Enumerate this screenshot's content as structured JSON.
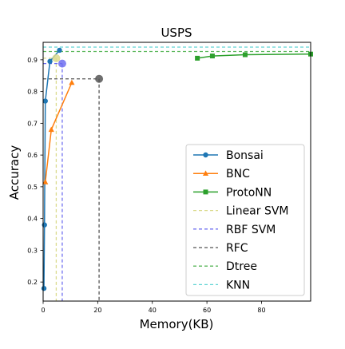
{
  "chart_data": {
    "type": "line",
    "title": "USPS",
    "xlabel": "Memory(KB)",
    "ylabel": "Accuracy",
    "xlim": [
      0,
      98
    ],
    "ylim": [
      0.14,
      0.955
    ],
    "xticks": [
      0,
      20,
      40,
      60,
      80
    ],
    "yticks": [
      0.2,
      0.3,
      0.4,
      0.5,
      0.6,
      0.7,
      0.8,
      0.9
    ],
    "tick_labels_x": [
      "0",
      "20",
      "40",
      "60",
      "80"
    ],
    "tick_labels_y": [
      "0.2",
      "0.3",
      "0.4",
      "0.5",
      "0.6",
      "0.7",
      "0.8",
      "0.9"
    ],
    "grid": false,
    "legend_position": "lower-right",
    "series": [
      {
        "name": "Bonsai",
        "kind": "line",
        "marker": "circle",
        "color": "#1f77b4",
        "x": [
          0.3,
          0.5,
          0.8,
          2.5,
          6.0
        ],
        "y": [
          0.18,
          0.38,
          0.77,
          0.895,
          0.93
        ]
      },
      {
        "name": "BNC",
        "kind": "line",
        "marker": "triangle",
        "color": "#ff7f0e",
        "x": [
          0.8,
          3.0,
          10.5
        ],
        "y": [
          0.515,
          0.68,
          0.828
        ]
      },
      {
        "name": "ProtoNN",
        "kind": "line",
        "marker": "square",
        "color": "#2ca02c",
        "x": [
          56.5,
          62.0,
          74.0,
          98.0
        ],
        "y": [
          0.905,
          0.912,
          0.916,
          0.918
        ]
      },
      {
        "name": "Linear SVM",
        "kind": "ref",
        "color": "#dbdb8d",
        "point": [
          4.8,
          0.905
        ],
        "vline": 4.8,
        "hline": 0.905
      },
      {
        "name": "RBF SVM",
        "kind": "ref",
        "color": "#6f6ff0",
        "point": [
          7.0,
          0.888
        ],
        "vline": 7.0,
        "hline": 0.888
      },
      {
        "name": "RFC",
        "kind": "ref",
        "color": "#555555",
        "point": [
          20.5,
          0.84
        ],
        "vline": 20.5,
        "hline": 0.84
      },
      {
        "name": "Dtree",
        "kind": "hline",
        "color": "#5cb85c",
        "hline": 0.926
      },
      {
        "name": "KNN",
        "kind": "hline",
        "color": "#5fd3d3",
        "hline": 0.94
      }
    ]
  }
}
